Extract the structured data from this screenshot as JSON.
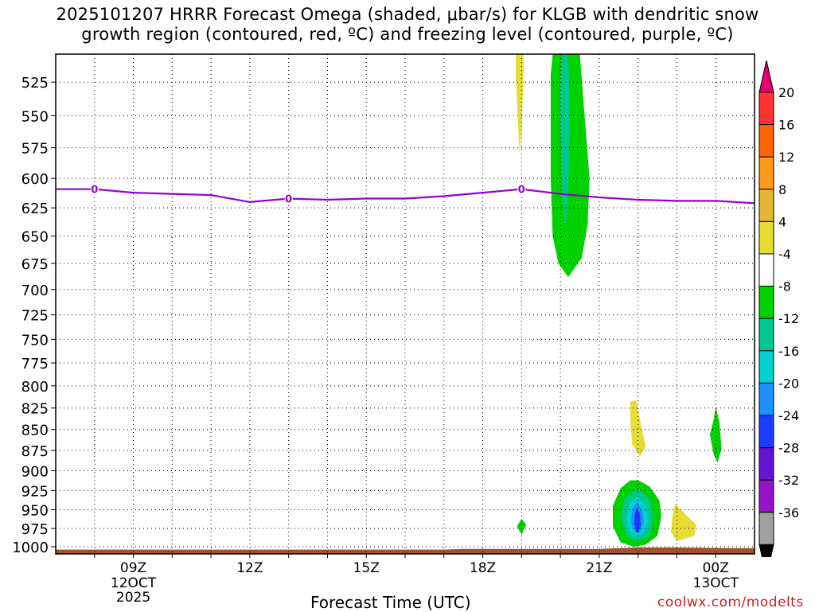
{
  "title": "2025101207 HRRR Forecast Omega (shaded, μbar/s) for KLGB with dendritic snow\ngrowth region (contoured, red, ºC) and freezing level (contoured, purple, ºC)",
  "credit": "coolwx.com/modelts",
  "chart_data": {
    "type": "contour",
    "title": "2025101207 HRRR Forecast Omega (shaded, μbar/s) for KLGB with dendritic snow growth region (contoured, red, ºC) and freezing level (contoured, purple, ºC)",
    "xlabel": "Forecast Time (UTC)",
    "ylabel": "",
    "x_unit": "hours UTC",
    "xlim": [
      "12OCT 07Z",
      "13OCT 01Z"
    ],
    "ylim": [
      1010,
      505
    ],
    "y_axis": "pressure (hPa), decreasing upward",
    "grid": true,
    "x_ticks": [
      {
        "x": 9,
        "label": "09Z",
        "sub": [
          "12OCT",
          "2025"
        ]
      },
      {
        "x": 12,
        "label": "12Z",
        "sub": []
      },
      {
        "x": 15,
        "label": "15Z",
        "sub": []
      },
      {
        "x": 18,
        "label": "18Z",
        "sub": []
      },
      {
        "x": 21,
        "label": "21Z",
        "sub": []
      },
      {
        "x": 24,
        "label": "00Z",
        "sub": [
          "13OCT"
        ]
      }
    ],
    "y_ticks": [
      525,
      550,
      575,
      600,
      625,
      650,
      675,
      700,
      725,
      750,
      775,
      800,
      825,
      850,
      875,
      900,
      925,
      950,
      975,
      1000
    ],
    "freezing_level": {
      "label": "0",
      "color": "#9400d3",
      "points": [
        [
          7,
          609
        ],
        [
          8,
          609
        ],
        [
          9,
          612
        ],
        [
          10,
          613
        ],
        [
          11,
          614
        ],
        [
          12,
          620
        ],
        [
          13,
          617
        ],
        [
          14,
          618
        ],
        [
          15,
          617
        ],
        [
          16,
          617
        ],
        [
          17,
          615
        ],
        [
          18,
          612
        ],
        [
          19,
          609
        ],
        [
          20,
          613
        ],
        [
          21,
          616
        ],
        [
          22,
          618
        ],
        [
          23,
          619
        ],
        [
          24,
          619
        ],
        [
          25,
          621
        ]
      ],
      "label_points": [
        [
          8,
          609
        ],
        [
          13,
          617
        ],
        [
          19,
          609
        ]
      ]
    },
    "terrain": {
      "color": "#a0522d",
      "points": [
        [
          7,
          1010
        ],
        [
          7,
          1004
        ],
        [
          17,
          1004
        ],
        [
          17.5,
          1003
        ],
        [
          19,
          1003
        ],
        [
          21,
          1003
        ],
        [
          21.5,
          1002
        ],
        [
          22,
          1001
        ],
        [
          23,
          1001
        ],
        [
          24.5,
          1002
        ],
        [
          25,
          1002
        ],
        [
          25,
          1010
        ]
      ]
    },
    "omega_regions": [
      {
        "name": "yellow-upper",
        "value": 4,
        "color": "#e6dc32",
        "points": [
          [
            18.85,
            505
          ],
          [
            19.05,
            505
          ],
          [
            19.05,
            520
          ],
          [
            19.0,
            560
          ],
          [
            18.95,
            580
          ],
          [
            18.9,
            550
          ],
          [
            18.85,
            520
          ]
        ]
      },
      {
        "name": "green-upper",
        "value": -4,
        "color": "#00d200",
        "points": [
          [
            19.8,
            505
          ],
          [
            20.5,
            505
          ],
          [
            20.65,
            560
          ],
          [
            20.75,
            600
          ],
          [
            20.7,
            640
          ],
          [
            20.55,
            670
          ],
          [
            20.2,
            688
          ],
          [
            19.95,
            675
          ],
          [
            19.8,
            650
          ],
          [
            19.75,
            600
          ],
          [
            19.75,
            560
          ],
          [
            19.75,
            520
          ]
        ]
      },
      {
        "name": "teal-upper",
        "value": -8,
        "color": "#00c88c",
        "points": [
          [
            20.05,
            505
          ],
          [
            20.2,
            505
          ],
          [
            20.25,
            560
          ],
          [
            20.2,
            610
          ],
          [
            20.12,
            645
          ],
          [
            20.05,
            615
          ],
          [
            20.0,
            560
          ],
          [
            20.0,
            520
          ]
        ]
      },
      {
        "name": "yellow-850",
        "value": 4,
        "color": "#e6dc32",
        "points": [
          [
            21.8,
            818
          ],
          [
            21.95,
            816
          ],
          [
            22.1,
            850
          ],
          [
            22.2,
            870
          ],
          [
            22.05,
            882
          ],
          [
            21.85,
            868
          ],
          [
            21.8,
            840
          ]
        ]
      },
      {
        "name": "green-860",
        "value": -4,
        "color": "#00d200",
        "points": [
          [
            24.0,
            823
          ],
          [
            24.1,
            842
          ],
          [
            24.15,
            873
          ],
          [
            24.05,
            890
          ],
          [
            23.95,
            880
          ],
          [
            23.85,
            856
          ],
          [
            23.95,
            838
          ]
        ]
      },
      {
        "name": "green-970",
        "value": -4,
        "color": "#00d200",
        "points": [
          [
            19.0,
            962
          ],
          [
            19.12,
            970
          ],
          [
            19.0,
            983
          ],
          [
            18.88,
            972
          ]
        ]
      },
      {
        "name": "green-950",
        "value": -4,
        "color": "#00d200",
        "points": [
          [
            22.0,
            912
          ],
          [
            22.3,
            920
          ],
          [
            22.55,
            938
          ],
          [
            22.6,
            958
          ],
          [
            22.5,
            985
          ],
          [
            22.2,
            997
          ],
          [
            21.9,
            1000
          ],
          [
            21.55,
            994
          ],
          [
            21.35,
            972
          ],
          [
            21.35,
            945
          ],
          [
            21.55,
            922
          ],
          [
            21.8,
            912
          ]
        ]
      },
      {
        "name": "teal-950",
        "value": -8,
        "color": "#00c88c",
        "points": [
          [
            22.0,
            922
          ],
          [
            22.3,
            936
          ],
          [
            22.4,
            960
          ],
          [
            22.3,
            985
          ],
          [
            22.0,
            993
          ],
          [
            21.7,
            985
          ],
          [
            21.55,
            960
          ],
          [
            21.65,
            935
          ]
        ]
      },
      {
        "name": "cyan-950",
        "value": -12,
        "color": "#00d2d2",
        "points": [
          [
            22.0,
            933
          ],
          [
            22.2,
            945
          ],
          [
            22.25,
            965
          ],
          [
            22.15,
            982
          ],
          [
            21.95,
            986
          ],
          [
            21.75,
            978
          ],
          [
            21.7,
            958
          ],
          [
            21.8,
            940
          ]
        ]
      },
      {
        "name": "blue-950",
        "value": -16,
        "color": "#1e90ff",
        "points": [
          [
            21.98,
            940
          ],
          [
            22.12,
            952
          ],
          [
            22.15,
            968
          ],
          [
            22.05,
            980
          ],
          [
            21.92,
            980
          ],
          [
            21.82,
            968
          ],
          [
            21.84,
            950
          ]
        ]
      },
      {
        "name": "darkblue-950",
        "value": -20,
        "color": "#1e3cff",
        "points": [
          [
            21.97,
            948
          ],
          [
            22.05,
            955
          ],
          [
            22.07,
            970
          ],
          [
            22.02,
            980
          ],
          [
            21.95,
            980
          ],
          [
            21.9,
            968
          ],
          [
            21.92,
            955
          ]
        ]
      },
      {
        "name": "yellow-970",
        "value": 4,
        "color": "#e6dc32",
        "points": [
          [
            22.95,
            942
          ],
          [
            23.2,
            955
          ],
          [
            23.5,
            970
          ],
          [
            23.45,
            985
          ],
          [
            23.0,
            992
          ],
          [
            22.85,
            980
          ],
          [
            22.88,
            960
          ]
        ]
      }
    ],
    "colorbar": {
      "labels": [
        "20",
        "16",
        "12",
        "8",
        "4",
        "-4",
        "-8",
        "-12",
        "-16",
        "-20",
        "-24",
        "-28",
        "-32",
        "-36"
      ],
      "colors": [
        "#e60073",
        "#ff3232",
        "#ff6400",
        "#ff9b19",
        "#e6b432",
        "#e6dc32",
        "#ffffff",
        "#00d200",
        "#00c88c",
        "#00d2d2",
        "#1e90ff",
        "#1e3cff",
        "#6414d2",
        "#9614c8",
        "#a0a0a0",
        "#000000"
      ]
    }
  }
}
